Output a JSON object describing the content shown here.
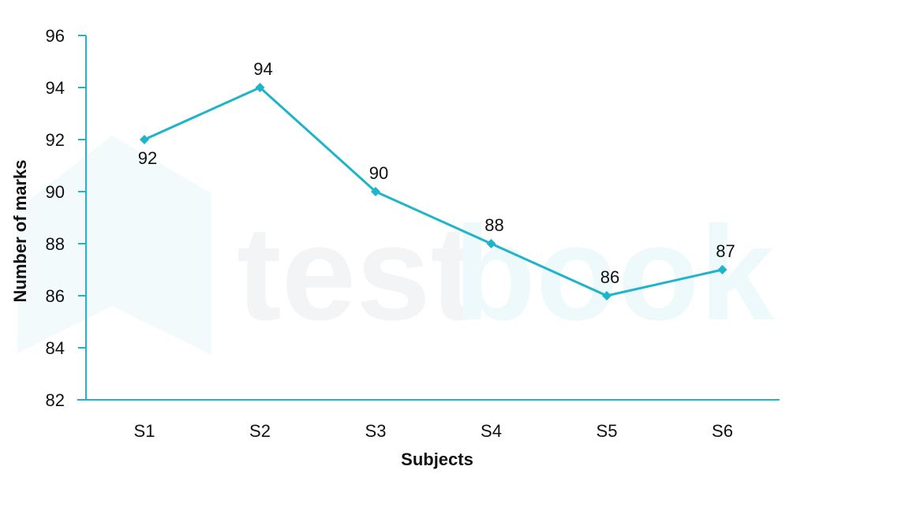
{
  "chart_data": {
    "type": "line",
    "title": "",
    "xlabel": "Subjects",
    "ylabel": "Number of marks",
    "categories": [
      "S1",
      "S2",
      "S3",
      "S4",
      "S5",
      "S6"
    ],
    "series": [
      {
        "values": [
          92,
          94,
          90,
          88,
          86,
          87
        ]
      }
    ],
    "data_labels": [
      "92",
      "94",
      "90",
      "88",
      "86",
      "87"
    ],
    "ylim": [
      82,
      96
    ],
    "yticks": [
      82,
      84,
      86,
      88,
      90,
      92,
      94,
      96
    ],
    "grid": false,
    "legend": "none"
  },
  "watermark": {
    "text_dark": "test",
    "text_light": "book"
  },
  "colors": {
    "line": "#1fb4c9",
    "axis": "#1fb4c9",
    "watermark": "#f2fafb"
  }
}
